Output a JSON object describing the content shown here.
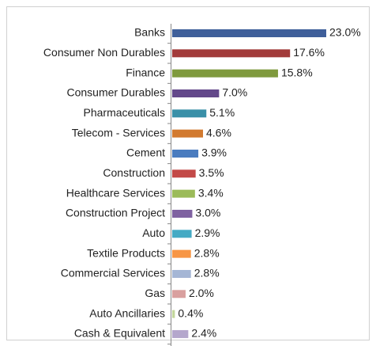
{
  "chart_data": {
    "type": "bar",
    "orientation": "horizontal",
    "categories": [
      "Banks",
      "Consumer Non Durables",
      "Finance",
      "Consumer Durables",
      "Pharmaceuticals",
      "Telecom - Services",
      "Cement",
      "Construction",
      "Healthcare Services",
      "Construction Project",
      "Auto",
      "Textile Products",
      "Commercial Services",
      "Gas",
      "Auto Ancillaries",
      "Cash & Equivalent"
    ],
    "values": [
      23.0,
      17.6,
      15.8,
      7.0,
      5.1,
      4.6,
      3.9,
      3.5,
      3.4,
      3.0,
      2.9,
      2.8,
      2.8,
      2.0,
      0.4,
      2.4
    ],
    "value_labels": [
      "23.0%",
      "17.6%",
      "15.8%",
      "7.0%",
      "5.1%",
      "4.6%",
      "3.9%",
      "3.5%",
      "3.4%",
      "3.0%",
      "2.9%",
      "2.8%",
      "2.8%",
      "2.0%",
      "0.4%",
      "2.4%"
    ],
    "colors": [
      "#3f5f9a",
      "#a23b3a",
      "#7f9a3e",
      "#63488a",
      "#3a90a8",
      "#d27a30",
      "#4a7cbf",
      "#c34a48",
      "#9bbb59",
      "#7f62a1",
      "#45aac4",
      "#f79646",
      "#a5b6d5",
      "#d9a09f",
      "#c3d69b",
      "#b4a7cc"
    ]
  }
}
